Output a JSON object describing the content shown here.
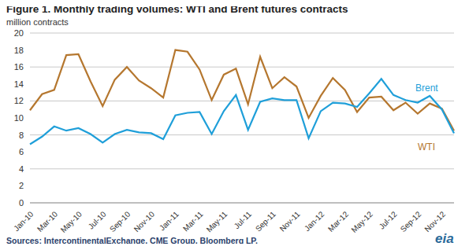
{
  "chart_data": {
    "type": "line",
    "title": "Figure 1.  Monthly trading volumes:  WTI and Brent futures contracts",
    "subtitle": "million contracts",
    "source": "Sources: IntercontinentalExchange, CME Group, Bloomberg LP.",
    "logo": "eia",
    "categories": [
      "Jan-10",
      null,
      "Mar-10",
      null,
      "May-10",
      null,
      "Jul-10",
      null,
      "Sep-10",
      null,
      "Nov-10",
      null,
      "Jan-11",
      null,
      "Mar-11",
      null,
      "May-11",
      null,
      "Jul-11",
      null,
      "Sep-11",
      null,
      "Nov-11",
      null,
      "Jan-12",
      null,
      "Mar-12",
      null,
      "May-12",
      null,
      "Jul-12",
      null,
      "Sep-12",
      null,
      "Nov-12",
      null
    ],
    "series": [
      {
        "name": "WTI",
        "color": "#b5772f",
        "values": [
          10.9,
          12.8,
          13.3,
          17.4,
          17.5,
          14.3,
          11.4,
          14.5,
          16.0,
          14.4,
          13.5,
          12.4,
          18.0,
          17.8,
          15.7,
          12.1,
          15.1,
          15.8,
          11.6,
          17.2,
          13.5,
          14.8,
          13.7,
          10.0,
          12.6,
          14.7,
          13.3,
          10.7,
          12.4,
          12.5,
          10.9,
          11.8,
          10.5,
          11.7,
          11.1,
          8.5
        ]
      },
      {
        "name": "Brent",
        "color": "#1f9fd9",
        "values": [
          6.9,
          7.8,
          9.0,
          8.5,
          8.8,
          8.1,
          7.1,
          8.1,
          8.6,
          8.3,
          8.2,
          7.5,
          10.3,
          10.6,
          10.7,
          8.1,
          10.8,
          12.7,
          8.6,
          11.9,
          12.3,
          12.1,
          12.1,
          7.6,
          10.8,
          11.8,
          11.7,
          11.3,
          12.9,
          14.6,
          12.7,
          12.1,
          11.8,
          12.6,
          11.0,
          8.2
        ]
      }
    ],
    "ylim": [
      0,
      20
    ],
    "yticks": [
      0,
      2,
      4,
      6,
      8,
      10,
      12,
      14,
      16,
      18,
      20
    ],
    "grid": true
  }
}
